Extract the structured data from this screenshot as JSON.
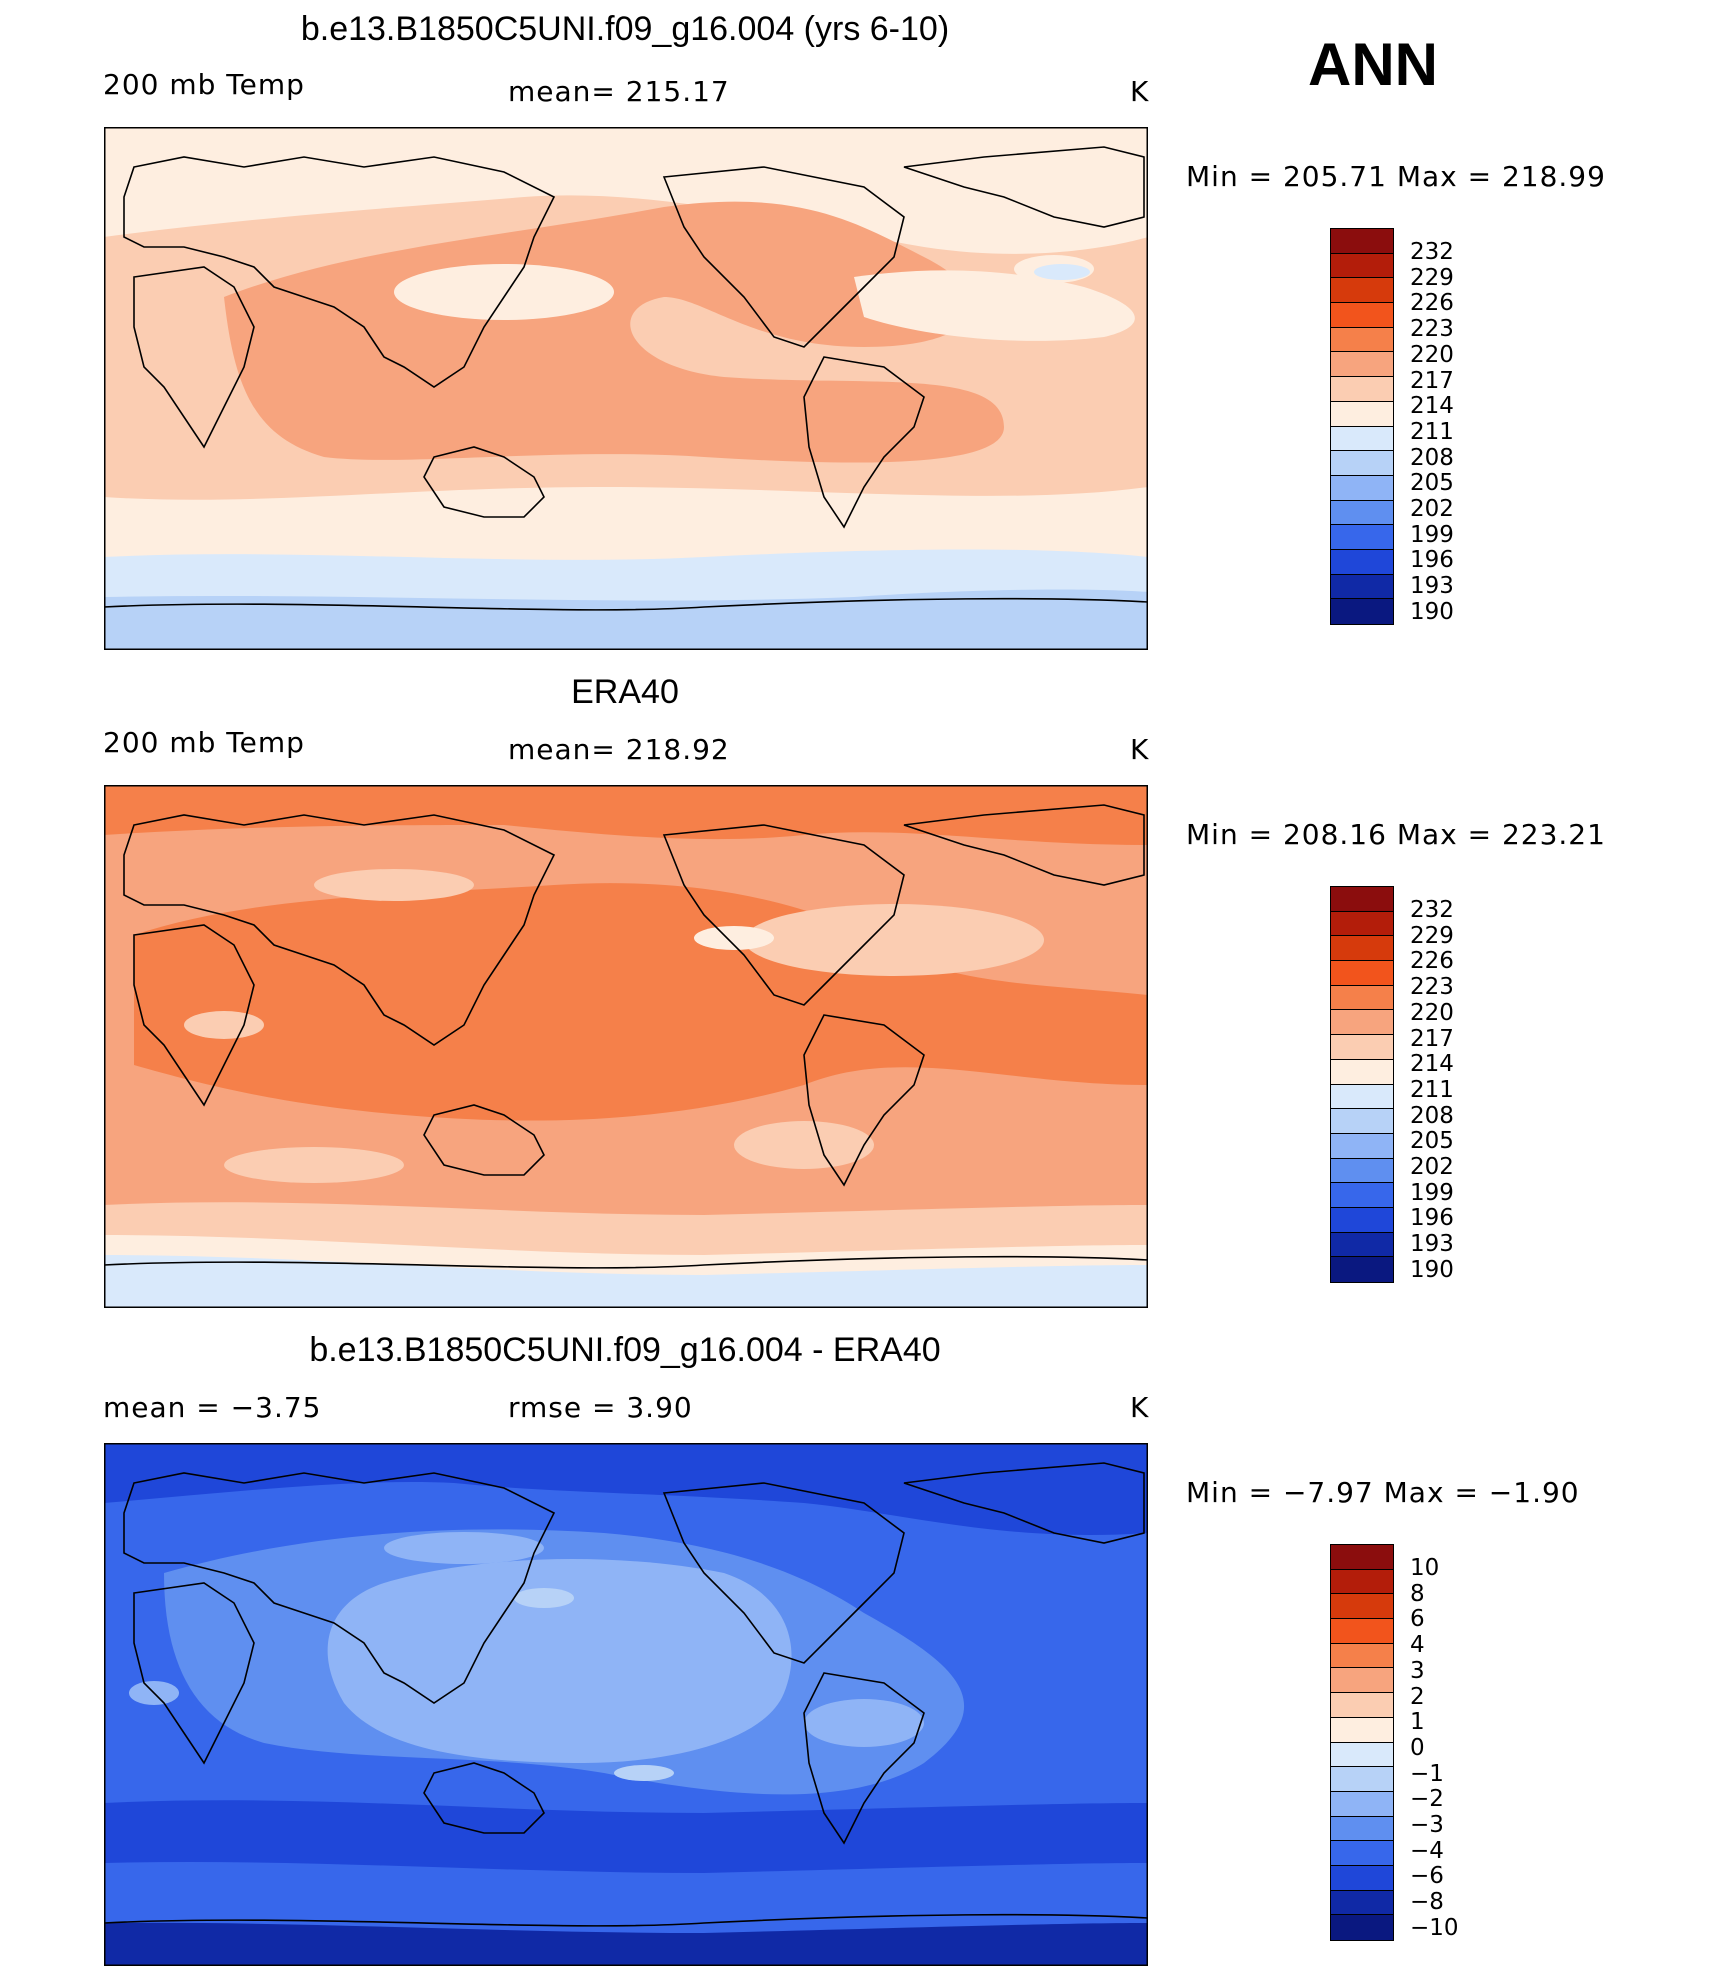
{
  "season": "ANN",
  "panels": [
    {
      "title": "b.e13.B1850C5UNI.f09_g16.004 (yrs 6-10)",
      "left_label": "200 mb Temp",
      "center_label": "mean=  215.17",
      "units": "K",
      "minmax": "Min  =  205.71  Max  =  218.99",
      "legend": [
        "232",
        "229",
        "226",
        "223",
        "220",
        "217",
        "214",
        "211",
        "208",
        "205",
        "202",
        "199",
        "196",
        "193",
        "190"
      ]
    },
    {
      "title": "ERA40",
      "left_label": "200 mb Temp",
      "center_label": "mean=  218.92",
      "units": "K",
      "minmax": "Min  =  208.16  Max  =  223.21",
      "legend": [
        "232",
        "229",
        "226",
        "223",
        "220",
        "217",
        "214",
        "211",
        "208",
        "205",
        "202",
        "199",
        "196",
        "193",
        "190"
      ]
    },
    {
      "title": "b.e13.B1850C5UNI.f09_g16.004 - ERA40",
      "left_label": "mean  =    −3.75",
      "center_label": "rmse  =     3.90",
      "units": "K",
      "minmax": "Min  =    −7.97  Max  =    −1.90",
      "legend": [
        "10",
        "8",
        "6",
        "4",
        "3",
        "2",
        "1",
        "0",
        "−1",
        "−2",
        "−3",
        "−4",
        "−6",
        "−8",
        "−10"
      ]
    }
  ],
  "colors": {
    "scale": [
      "#8b0d0d",
      "#b31d0a",
      "#d63a0c",
      "#f2541c",
      "#f5804a",
      "#f7a47e",
      "#fbcdb2",
      "#feeee0",
      "#d9e9fb",
      "#b7d2f7",
      "#8fb4f6",
      "#5f8ff0",
      "#3767eb",
      "#1f47d9",
      "#1029a6",
      "#0a1880"
    ],
    "diff_scale": [
      "#8b0d0d",
      "#b31d0a",
      "#d63a0c",
      "#f2541c",
      "#f5804a",
      "#f7a47e",
      "#fbcdb2",
      "#feeee0",
      "#d9e9fb",
      "#b7d2f7",
      "#8fb4f6",
      "#5f8ff0",
      "#3767eb",
      "#1f47d9",
      "#1029a6",
      "#0a1880"
    ]
  }
}
